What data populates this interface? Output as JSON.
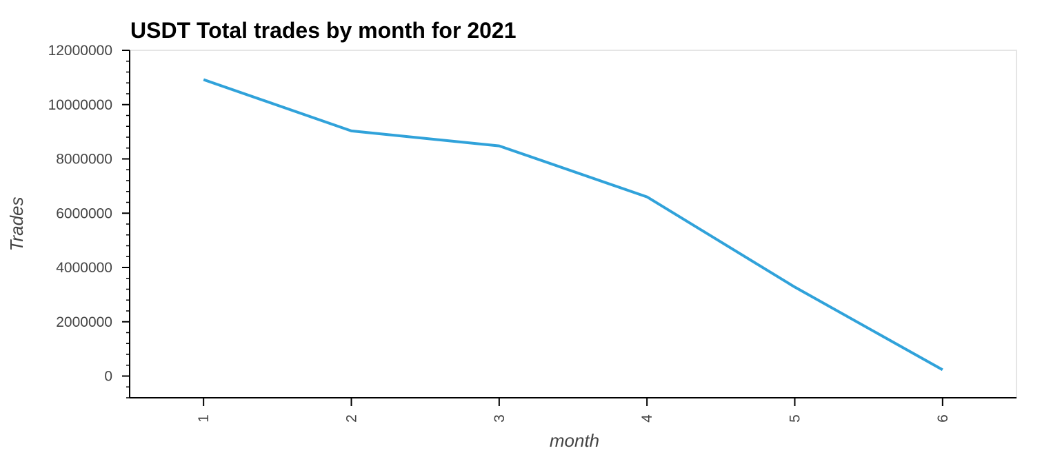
{
  "chart_data": {
    "type": "line",
    "title": "USDT Total trades by month for 2021",
    "xlabel": "month",
    "ylabel": "Trades",
    "x": [
      1,
      2,
      3,
      4,
      5,
      6
    ],
    "xticks": [
      "1",
      "2",
      "3",
      "4",
      "5",
      "6"
    ],
    "xlim": [
      0.5,
      6.5
    ],
    "yticks": [
      "0",
      "2000000",
      "4000000",
      "6000000",
      "8000000",
      "10000000",
      "12000000"
    ],
    "ylim": [
      -800000,
      12000000
    ],
    "grid": false,
    "series": [
      {
        "values": [
          10920000,
          9030000,
          8480000,
          6600000,
          3280000,
          230000
        ],
        "color": "#30a2da"
      }
    ]
  }
}
